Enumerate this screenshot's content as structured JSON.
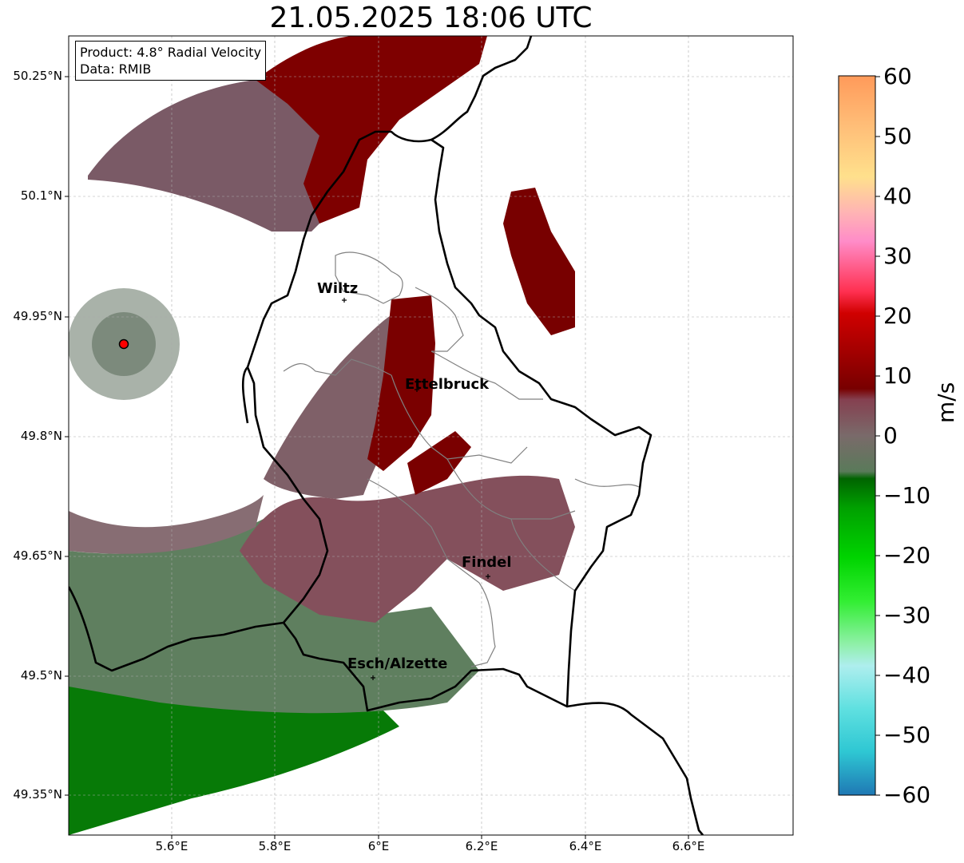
{
  "title": "21.05.2025 18:06 UTC",
  "info": {
    "product": "Product: 4.8° Radial Velocity",
    "data": "Data: RMIB"
  },
  "axes": {
    "lat_ticks": [
      "50.25°N",
      "50.1°N",
      "49.95°N",
      "49.8°N",
      "49.65°N",
      "49.5°N",
      "49.35°N"
    ],
    "lon_ticks": [
      "5.6°E",
      "5.8°E",
      "6°E",
      "6.2°E",
      "6.4°E",
      "6.6°E"
    ]
  },
  "cities": [
    {
      "name": "Wiltz",
      "lon": 5.93,
      "lat": 49.97
    },
    {
      "name": "Ettelbruck",
      "lon": 6.1,
      "lat": 49.85
    },
    {
      "name": "Findel",
      "lon": 6.21,
      "lat": 49.63
    },
    {
      "name": "Esch/Alzette",
      "lon": 5.99,
      "lat": 49.5
    }
  ],
  "radar_site": {
    "lon": 5.505,
    "lat": 49.914,
    "color": "#ff0000"
  },
  "colorbar": {
    "unit": "m/s",
    "min": -60,
    "max": 60,
    "tick_labels": [
      "60",
      "50",
      "40",
      "30",
      "20",
      "10",
      "0",
      "−10",
      "−20",
      "−30",
      "−40",
      "−50",
      "−60"
    ],
    "stops": [
      "#1f78b4",
      "#2ec7d3",
      "#5fe0e0",
      "#aeeeee",
      "#8ff0a8",
      "#32ee32",
      "#00d400",
      "#00a000",
      "#006400",
      "#5a7a5a",
      "#7a6a6a",
      "#854050",
      "#780000",
      "#b00000",
      "#ff0000",
      "#ff5a6e",
      "#ff8cc8",
      "#ffb4b4",
      "#ffe08c",
      "#ffbe78",
      "#ff9a5a"
    ]
  },
  "colors": {
    "approaching_strong": "#007a00",
    "approaching_weak": "#5f7f5f",
    "near_zero": "#826a70",
    "receding_weak": "#8a3a48",
    "receding_strong": "#7a0000",
    "border": "#000000",
    "canton": "#808080"
  }
}
